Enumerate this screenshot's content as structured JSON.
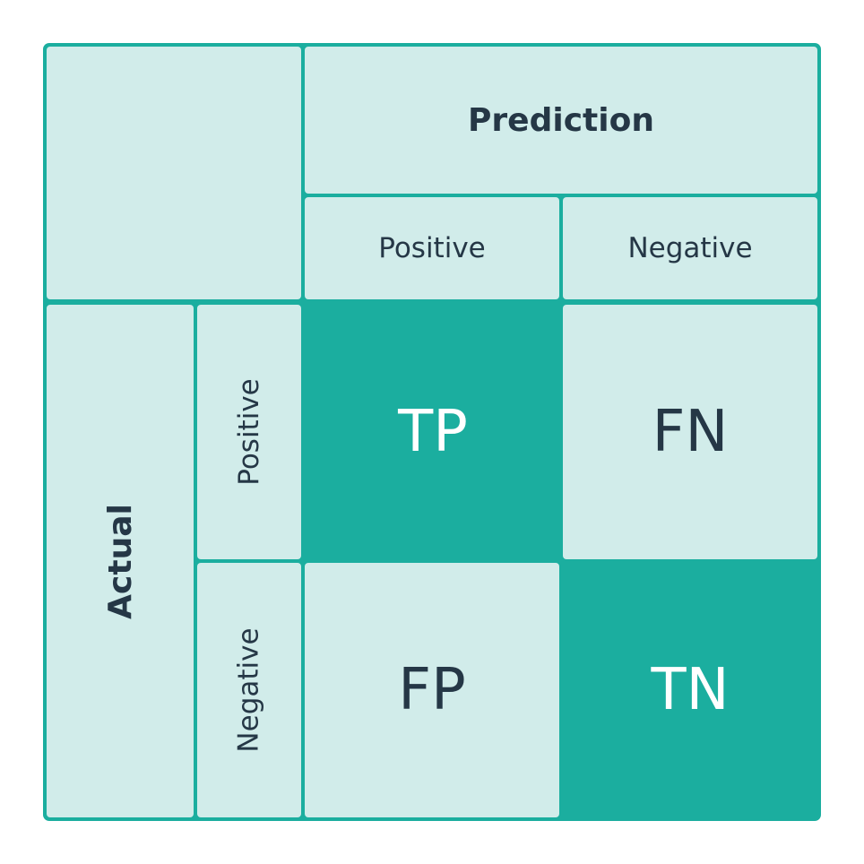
{
  "prediction": {
    "title": "Prediction",
    "positive_label": "Positive",
    "negative_label": "Negative"
  },
  "actual": {
    "title": "Actual",
    "positive_label": "Positive",
    "negative_label": "Negative"
  },
  "cells": {
    "tp": "TP",
    "fn": "FN",
    "fp": "FP",
    "tn": "TN"
  },
  "colors": {
    "accent": "#1bae9f",
    "light_cell": "#d1ecea",
    "text": "#253746"
  }
}
